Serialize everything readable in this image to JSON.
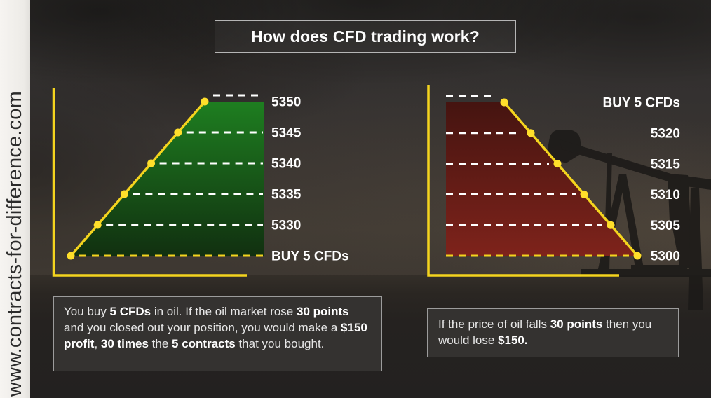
{
  "title": "How does CFD trading work?",
  "watermark": {
    "text": "www.contracts-for-difference.com"
  },
  "colors": {
    "accent_yellow": "#f4d41e",
    "dot_yellow": "#ffdf2b",
    "level_dash_white": "#ffffff",
    "label_text": "#ffffff",
    "profit_green_top": "#1e7e20",
    "profit_green_bottom": "#113010",
    "loss_red_top": "#451410",
    "loss_red_bottom": "#7e231b"
  },
  "chart_data": [
    {
      "type": "line",
      "name": "buy-then-price-rises",
      "scenario": "profit",
      "entry_label": "BUY 5 CFDs",
      "points": [
        {
          "x": 0,
          "label": "BUY 5 CFDs",
          "value": null
        },
        {
          "x": 1,
          "label": "5330",
          "value": 5330
        },
        {
          "x": 2,
          "label": "5335",
          "value": 5335
        },
        {
          "x": 3,
          "label": "5340",
          "value": 5340
        },
        {
          "x": 4,
          "label": "5345",
          "value": 5345
        },
        {
          "x": 5,
          "label": "5350",
          "value": 5350
        }
      ],
      "area_fill": [
        "#1e7e20",
        "#113010"
      ],
      "line_color": "#f4d41e",
      "marker": "circle",
      "level_lines": "dashed-horizontal",
      "labels_position": "right-of-area",
      "axes_tick_labels": "none",
      "legend": "none"
    },
    {
      "type": "line",
      "name": "buy-then-price-falls",
      "scenario": "loss",
      "entry_label": "BUY 5 CFDs",
      "points": [
        {
          "x": 0,
          "label": "BUY 5 CFDs",
          "value": null
        },
        {
          "x": 1,
          "label": "5320",
          "value": 5320
        },
        {
          "x": 2,
          "label": "5315",
          "value": 5315
        },
        {
          "x": 3,
          "label": "5310",
          "value": 5310
        },
        {
          "x": 4,
          "label": "5305",
          "value": 5305
        },
        {
          "x": 5,
          "label": "5300",
          "value": 5300
        }
      ],
      "area_fill": [
        "#451410",
        "#7e231b"
      ],
      "line_color": "#f4d41e",
      "marker": "circle",
      "level_lines": "dashed-horizontal",
      "labels_position": "right-of-chart",
      "axes_tick_labels": "none",
      "legend": "none"
    }
  ],
  "notes": [
    {
      "segments": [
        {
          "t": "You buy ",
          "b": false
        },
        {
          "t": "5 CFDs",
          "b": true
        },
        {
          "t": " in oil. If the oil market rose ",
          "b": false
        },
        {
          "t": "30 points",
          "b": true
        },
        {
          "t": " and you closed out your position, you would make a ",
          "b": false
        },
        {
          "t": "$150 profit",
          "b": true
        },
        {
          "t": ", ",
          "b": false
        },
        {
          "t": "30 times",
          "b": true
        },
        {
          "t": " the ",
          "b": false
        },
        {
          "t": "5 contracts",
          "b": true
        },
        {
          "t": " that you bought.",
          "b": false
        }
      ]
    },
    {
      "segments": [
        {
          "t": "If the price of oil falls ",
          "b": false
        },
        {
          "t": "30 points",
          "b": true
        },
        {
          "t": " then you would lose ",
          "b": false
        },
        {
          "t": "$150.",
          "b": true
        }
      ]
    }
  ]
}
